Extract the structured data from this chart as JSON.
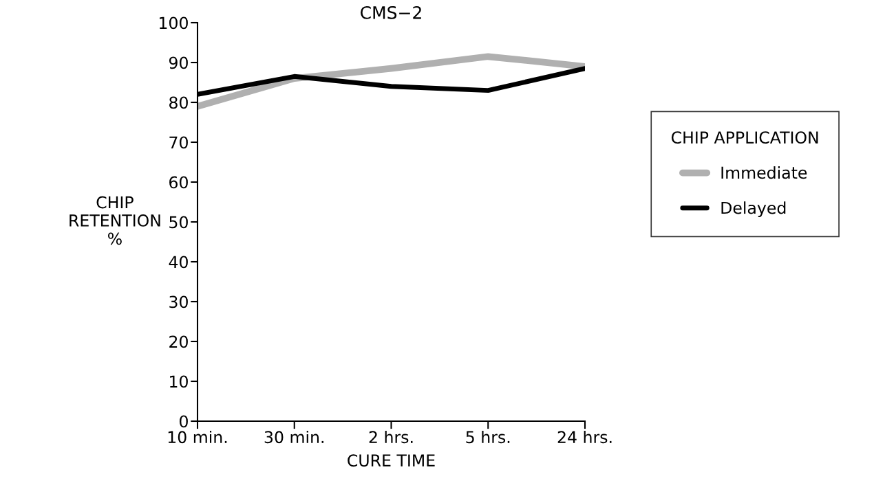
{
  "chart_data": {
    "type": "line",
    "title": "CMS−2",
    "xlabel": "CURE TIME",
    "ylabel": "CHIP\nRETENTION\n%",
    "legend_title": "CHIP APPLICATION",
    "categories": [
      "10 min.",
      "30 min.",
      "2 hrs.",
      "5 hrs.",
      "24 hrs."
    ],
    "series": [
      {
        "name": "Immediate",
        "color": "#b0b0b0",
        "values": [
          79,
          86,
          88.5,
          91.5,
          89
        ]
      },
      {
        "name": "Delayed",
        "color": "#000000",
        "values": [
          82,
          86.5,
          84,
          83,
          88.5
        ]
      }
    ],
    "ylim": [
      0,
      100
    ],
    "yticks": [
      0,
      10,
      20,
      30,
      40,
      50,
      60,
      70,
      80,
      90,
      100
    ],
    "grid": false,
    "legend": "right",
    "marker": "none",
    "line_style": "solid"
  }
}
